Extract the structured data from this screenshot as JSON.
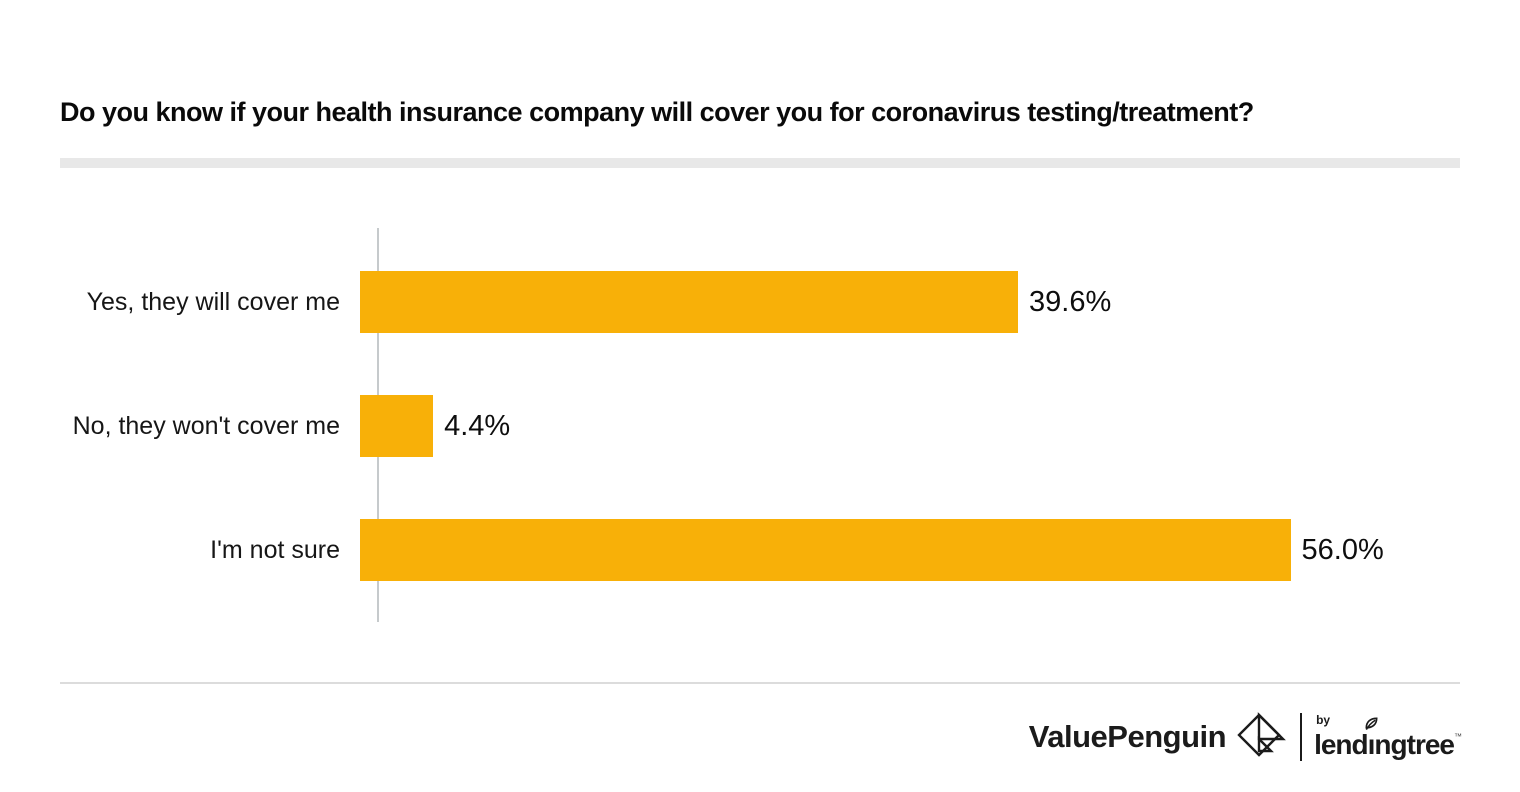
{
  "chart_data": {
    "type": "bar",
    "orientation": "horizontal",
    "title": "Do you know if your health insurance company will cover you for coronavirus testing/treatment?",
    "categories": [
      "Yes, they will cover me",
      "No, they won't cover me",
      "I'm not sure"
    ],
    "values": [
      39.6,
      4.4,
      56.0
    ],
    "value_labels": [
      "39.6%",
      "4.4%",
      "56.0%"
    ],
    "xlabel": "",
    "ylabel": "",
    "xlim": [
      0,
      66.2
    ],
    "grid": false,
    "legend": false,
    "bar_color": "#f8b008",
    "axis_line_color": "#c6cacc"
  },
  "footer": {
    "brand": "ValuePenguin",
    "byline": "by",
    "partner_prefix": "lend",
    "partner_i": "ı",
    "partner_suffix": "ngtree",
    "trademark": "™",
    "icons": [
      "valuepenguin-origami-penguin-icon",
      "lendingtree-leaf-icon"
    ]
  },
  "colors": {
    "background": "#ffffff",
    "title_text": "#0a0a0a",
    "divider": "#e8e8e8",
    "footer_line": "#dcdcdc",
    "logo_ink": "#1b1b1b"
  }
}
